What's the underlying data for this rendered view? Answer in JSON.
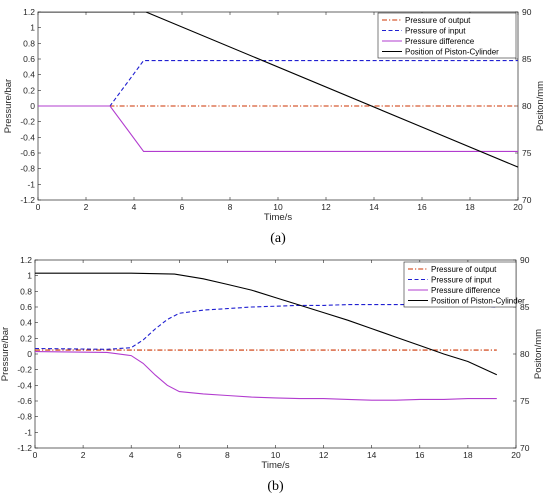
{
  "chart_data": [
    {
      "type": "line",
      "caption": "(a)",
      "xlabel": "Time/s",
      "ylabel": "Pressure/bar",
      "y2label": "Positon/mm",
      "xlim": [
        0,
        20
      ],
      "ylim": [
        -1.2,
        1.2
      ],
      "y2lim": [
        70,
        90
      ],
      "xticks": [
        0,
        2,
        4,
        6,
        8,
        10,
        12,
        14,
        16,
        18,
        20
      ],
      "yticks": [
        -1.2,
        -1,
        -0.8,
        -0.6,
        -0.4,
        -0.2,
        0,
        0.2,
        0.4,
        0.6,
        0.8,
        1,
        1.2
      ],
      "y2ticks": [
        70,
        75,
        80,
        85,
        90
      ],
      "legend_placement": "top-right",
      "grid": false,
      "series": [
        {
          "name": "Pressure of output",
          "axis": "left",
          "color": "#cc3300",
          "style": "dashdot",
          "x": [
            0,
            20
          ],
          "y": [
            0,
            0
          ]
        },
        {
          "name": "Pressure of input",
          "axis": "left",
          "color": "#1f1fd1",
          "style": "dashed",
          "x": [
            0,
            3,
            4.4,
            20
          ],
          "y": [
            0,
            0,
            0.58,
            0.58
          ]
        },
        {
          "name": "Pressure difference",
          "axis": "left",
          "color": "#b23ccf",
          "style": "solid",
          "x": [
            0,
            3,
            4.4,
            20
          ],
          "y": [
            0,
            0,
            -0.58,
            -0.58
          ]
        },
        {
          "name": "Position of Piston-Cylinder",
          "axis": "right",
          "color": "#000000",
          "style": "solid",
          "x": [
            0,
            4.5,
            20
          ],
          "y": [
            90,
            90,
            73.5
          ]
        }
      ]
    },
    {
      "type": "line",
      "caption": "(b)",
      "xlabel": "Time/s",
      "ylabel": "Pressure/bar",
      "y2label": "Positon/mm",
      "xlim": [
        0,
        20
      ],
      "ylim": [
        -1.2,
        1.2
      ],
      "y2lim": [
        70,
        90
      ],
      "xticks": [
        0,
        2,
        4,
        6,
        8,
        10,
        12,
        14,
        16,
        18,
        20
      ],
      "yticks": [
        -1.2,
        -1,
        -0.8,
        -0.6,
        -0.4,
        -0.2,
        0,
        0.2,
        0.4,
        0.6,
        0.8,
        1,
        1.2
      ],
      "y2ticks": [
        70,
        75,
        80,
        85,
        90
      ],
      "legend_placement": "top-right",
      "grid": false,
      "series": [
        {
          "name": "Pressure of output",
          "axis": "left",
          "color": "#cc3300",
          "style": "dashdot",
          "x": [
            0,
            19.2
          ],
          "y": [
            0.05,
            0.05
          ]
        },
        {
          "name": "Pressure of input",
          "axis": "left",
          "color": "#1f1fd1",
          "style": "dashed",
          "x": [
            0,
            3,
            4,
            4.5,
            5,
            5.5,
            6,
            7,
            8,
            9,
            10,
            11,
            12,
            13,
            14,
            15,
            16,
            17,
            18,
            19.2
          ],
          "y": [
            0.07,
            0.06,
            0.08,
            0.18,
            0.32,
            0.44,
            0.52,
            0.56,
            0.58,
            0.6,
            0.61,
            0.62,
            0.62,
            0.63,
            0.63,
            0.63,
            0.63,
            0.62,
            0.62,
            0.6
          ]
        },
        {
          "name": "Pressure difference",
          "axis": "left",
          "color": "#b23ccf",
          "style": "solid",
          "x": [
            0,
            3,
            4,
            4.5,
            5,
            5.5,
            6,
            7,
            8,
            9,
            10,
            11,
            12,
            13,
            14,
            15,
            16,
            17,
            18,
            19.2
          ],
          "y": [
            0.03,
            0.02,
            -0.02,
            -0.12,
            -0.27,
            -0.4,
            -0.48,
            -0.51,
            -0.53,
            -0.55,
            -0.56,
            -0.57,
            -0.57,
            -0.58,
            -0.59,
            -0.59,
            -0.58,
            -0.58,
            -0.57,
            -0.57
          ]
        },
        {
          "name": "Position of Piston-Cylinder",
          "axis": "right",
          "color": "#000000",
          "style": "solid",
          "x": [
            0,
            2,
            4,
            5.8,
            7,
            8,
            9,
            10,
            11,
            12,
            13,
            14,
            15,
            16,
            17,
            18,
            19.2
          ],
          "y": [
            88.6,
            88.6,
            88.6,
            88.5,
            88,
            87.4,
            86.8,
            86,
            85.2,
            84.4,
            83.6,
            82.7,
            81.8,
            80.9,
            80,
            79.2,
            77.8
          ]
        }
      ]
    }
  ]
}
